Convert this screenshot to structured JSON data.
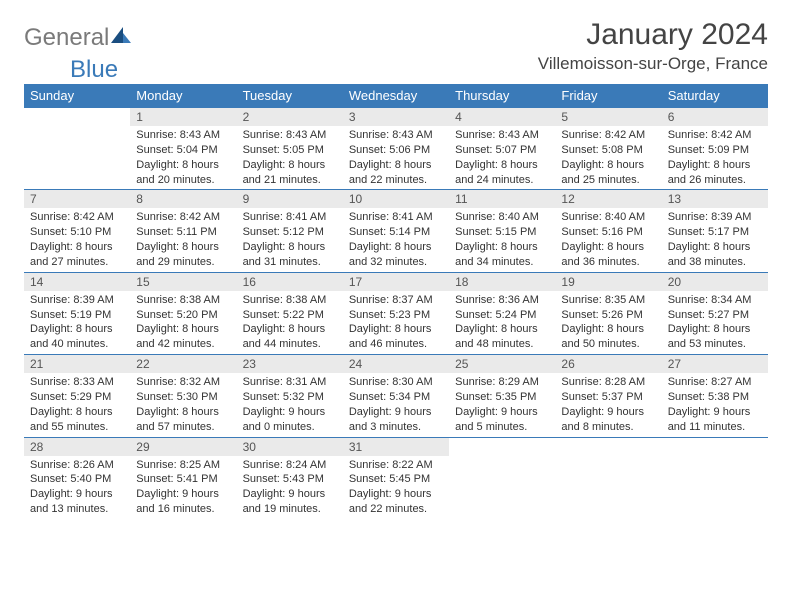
{
  "logo": {
    "text1": "General",
    "text2": "Blue"
  },
  "title": "January 2024",
  "location": "Villemoisson-sur-Orge, France",
  "colors": {
    "header_bg": "#3a7ab8",
    "header_text": "#ffffff",
    "daynum_bg": "#eaeaea",
    "daynum_text": "#555555",
    "border": "#3a7ab8",
    "body_text": "#333333",
    "logo_gray": "#7a7a7a",
    "logo_blue": "#3a7ab8"
  },
  "typography": {
    "title_fontsize": 30,
    "location_fontsize": 17,
    "dayheader_fontsize": 13,
    "daynum_fontsize": 12,
    "cell_fontsize": 11
  },
  "day_headers": [
    "Sunday",
    "Monday",
    "Tuesday",
    "Wednesday",
    "Thursday",
    "Friday",
    "Saturday"
  ],
  "weeks": [
    [
      null,
      {
        "n": "1",
        "sr": "Sunrise: 8:43 AM",
        "ss": "Sunset: 5:04 PM",
        "d1": "Daylight: 8 hours",
        "d2": "and 20 minutes."
      },
      {
        "n": "2",
        "sr": "Sunrise: 8:43 AM",
        "ss": "Sunset: 5:05 PM",
        "d1": "Daylight: 8 hours",
        "d2": "and 21 minutes."
      },
      {
        "n": "3",
        "sr": "Sunrise: 8:43 AM",
        "ss": "Sunset: 5:06 PM",
        "d1": "Daylight: 8 hours",
        "d2": "and 22 minutes."
      },
      {
        "n": "4",
        "sr": "Sunrise: 8:43 AM",
        "ss": "Sunset: 5:07 PM",
        "d1": "Daylight: 8 hours",
        "d2": "and 24 minutes."
      },
      {
        "n": "5",
        "sr": "Sunrise: 8:42 AM",
        "ss": "Sunset: 5:08 PM",
        "d1": "Daylight: 8 hours",
        "d2": "and 25 minutes."
      },
      {
        "n": "6",
        "sr": "Sunrise: 8:42 AM",
        "ss": "Sunset: 5:09 PM",
        "d1": "Daylight: 8 hours",
        "d2": "and 26 minutes."
      }
    ],
    [
      {
        "n": "7",
        "sr": "Sunrise: 8:42 AM",
        "ss": "Sunset: 5:10 PM",
        "d1": "Daylight: 8 hours",
        "d2": "and 27 minutes."
      },
      {
        "n": "8",
        "sr": "Sunrise: 8:42 AM",
        "ss": "Sunset: 5:11 PM",
        "d1": "Daylight: 8 hours",
        "d2": "and 29 minutes."
      },
      {
        "n": "9",
        "sr": "Sunrise: 8:41 AM",
        "ss": "Sunset: 5:12 PM",
        "d1": "Daylight: 8 hours",
        "d2": "and 31 minutes."
      },
      {
        "n": "10",
        "sr": "Sunrise: 8:41 AM",
        "ss": "Sunset: 5:14 PM",
        "d1": "Daylight: 8 hours",
        "d2": "and 32 minutes."
      },
      {
        "n": "11",
        "sr": "Sunrise: 8:40 AM",
        "ss": "Sunset: 5:15 PM",
        "d1": "Daylight: 8 hours",
        "d2": "and 34 minutes."
      },
      {
        "n": "12",
        "sr": "Sunrise: 8:40 AM",
        "ss": "Sunset: 5:16 PM",
        "d1": "Daylight: 8 hours",
        "d2": "and 36 minutes."
      },
      {
        "n": "13",
        "sr": "Sunrise: 8:39 AM",
        "ss": "Sunset: 5:17 PM",
        "d1": "Daylight: 8 hours",
        "d2": "and 38 minutes."
      }
    ],
    [
      {
        "n": "14",
        "sr": "Sunrise: 8:39 AM",
        "ss": "Sunset: 5:19 PM",
        "d1": "Daylight: 8 hours",
        "d2": "and 40 minutes."
      },
      {
        "n": "15",
        "sr": "Sunrise: 8:38 AM",
        "ss": "Sunset: 5:20 PM",
        "d1": "Daylight: 8 hours",
        "d2": "and 42 minutes."
      },
      {
        "n": "16",
        "sr": "Sunrise: 8:38 AM",
        "ss": "Sunset: 5:22 PM",
        "d1": "Daylight: 8 hours",
        "d2": "and 44 minutes."
      },
      {
        "n": "17",
        "sr": "Sunrise: 8:37 AM",
        "ss": "Sunset: 5:23 PM",
        "d1": "Daylight: 8 hours",
        "d2": "and 46 minutes."
      },
      {
        "n": "18",
        "sr": "Sunrise: 8:36 AM",
        "ss": "Sunset: 5:24 PM",
        "d1": "Daylight: 8 hours",
        "d2": "and 48 minutes."
      },
      {
        "n": "19",
        "sr": "Sunrise: 8:35 AM",
        "ss": "Sunset: 5:26 PM",
        "d1": "Daylight: 8 hours",
        "d2": "and 50 minutes."
      },
      {
        "n": "20",
        "sr": "Sunrise: 8:34 AM",
        "ss": "Sunset: 5:27 PM",
        "d1": "Daylight: 8 hours",
        "d2": "and 53 minutes."
      }
    ],
    [
      {
        "n": "21",
        "sr": "Sunrise: 8:33 AM",
        "ss": "Sunset: 5:29 PM",
        "d1": "Daylight: 8 hours",
        "d2": "and 55 minutes."
      },
      {
        "n": "22",
        "sr": "Sunrise: 8:32 AM",
        "ss": "Sunset: 5:30 PM",
        "d1": "Daylight: 8 hours",
        "d2": "and 57 minutes."
      },
      {
        "n": "23",
        "sr": "Sunrise: 8:31 AM",
        "ss": "Sunset: 5:32 PM",
        "d1": "Daylight: 9 hours",
        "d2": "and 0 minutes."
      },
      {
        "n": "24",
        "sr": "Sunrise: 8:30 AM",
        "ss": "Sunset: 5:34 PM",
        "d1": "Daylight: 9 hours",
        "d2": "and 3 minutes."
      },
      {
        "n": "25",
        "sr": "Sunrise: 8:29 AM",
        "ss": "Sunset: 5:35 PM",
        "d1": "Daylight: 9 hours",
        "d2": "and 5 minutes."
      },
      {
        "n": "26",
        "sr": "Sunrise: 8:28 AM",
        "ss": "Sunset: 5:37 PM",
        "d1": "Daylight: 9 hours",
        "d2": "and 8 minutes."
      },
      {
        "n": "27",
        "sr": "Sunrise: 8:27 AM",
        "ss": "Sunset: 5:38 PM",
        "d1": "Daylight: 9 hours",
        "d2": "and 11 minutes."
      }
    ],
    [
      {
        "n": "28",
        "sr": "Sunrise: 8:26 AM",
        "ss": "Sunset: 5:40 PM",
        "d1": "Daylight: 9 hours",
        "d2": "and 13 minutes."
      },
      {
        "n": "29",
        "sr": "Sunrise: 8:25 AM",
        "ss": "Sunset: 5:41 PM",
        "d1": "Daylight: 9 hours",
        "d2": "and 16 minutes."
      },
      {
        "n": "30",
        "sr": "Sunrise: 8:24 AM",
        "ss": "Sunset: 5:43 PM",
        "d1": "Daylight: 9 hours",
        "d2": "and 19 minutes."
      },
      {
        "n": "31",
        "sr": "Sunrise: 8:22 AM",
        "ss": "Sunset: 5:45 PM",
        "d1": "Daylight: 9 hours",
        "d2": "and 22 minutes."
      },
      null,
      null,
      null
    ]
  ]
}
